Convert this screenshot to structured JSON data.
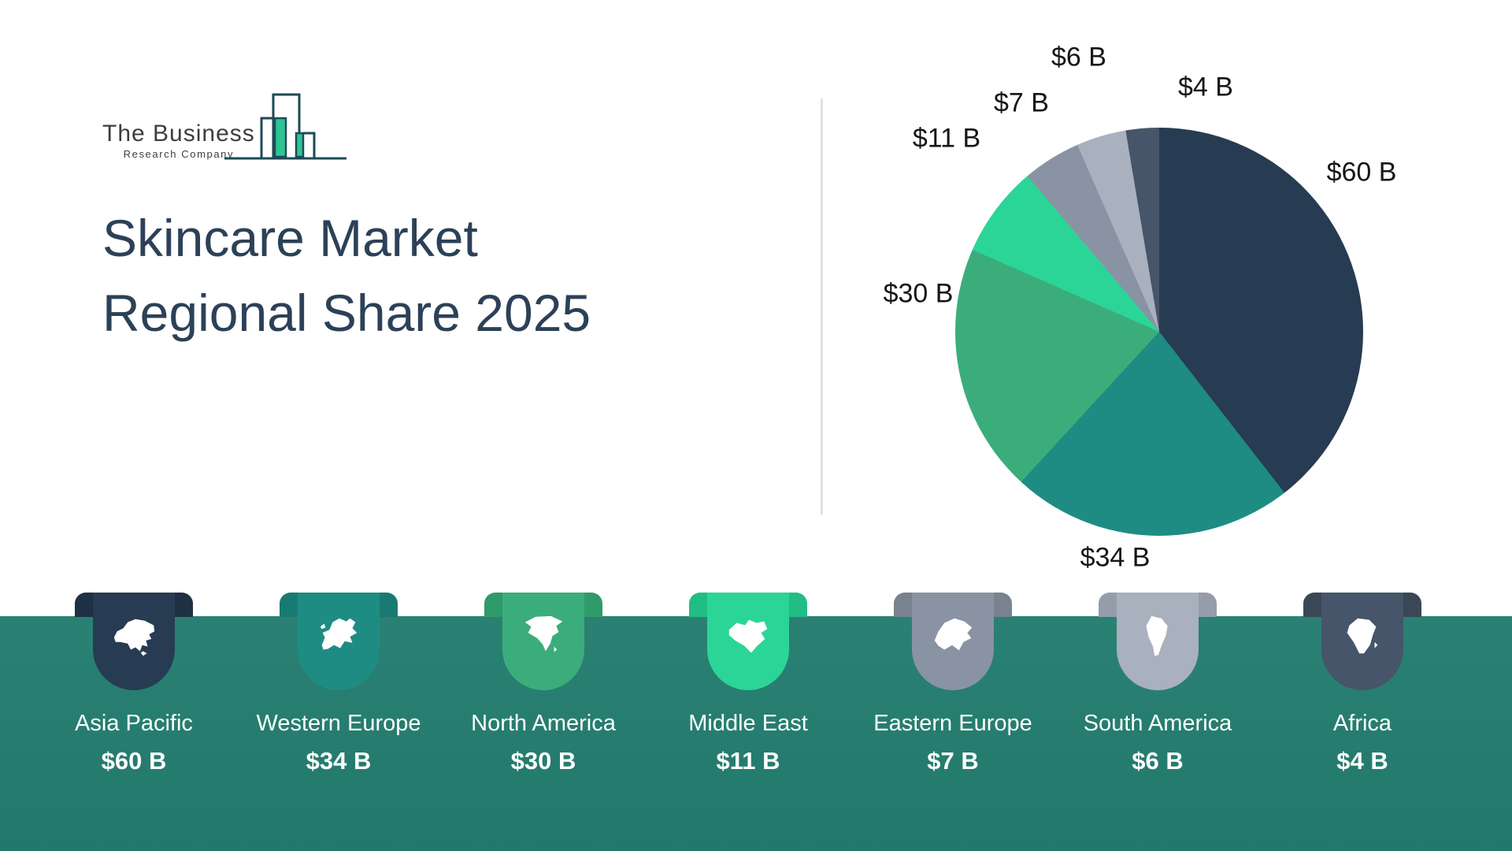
{
  "logo": {
    "line1": "The Business",
    "line2": "Research Company"
  },
  "title": {
    "line1": "Skincare Market",
    "line2": "Regional Share 2025"
  },
  "chart_data": {
    "type": "pie",
    "title": "Skincare Market Regional Share 2025",
    "unit": "USD billions",
    "categories": [
      "Asia Pacific",
      "Western Europe",
      "North America",
      "Middle East",
      "Eastern Europe",
      "South America",
      "Africa"
    ],
    "values": [
      60,
      34,
      30,
      11,
      7,
      6,
      4
    ],
    "labels": [
      "$60 B",
      "$34 B",
      "$30 B",
      "$11 B",
      "$7 B",
      "$6 B",
      "$4 B"
    ],
    "colors": [
      "#273c52",
      "#1f8c83",
      "#3bad7b",
      "#2bd598",
      "#8a93a3",
      "#a9b0be",
      "#465569"
    ],
    "start_angle_deg": 0,
    "direction": "clockwise",
    "legend_position": "bottom"
  },
  "regions": [
    {
      "name": "Asia Pacific",
      "value": "$60 B",
      "color": "#273c52",
      "ear_color": "#1e3044",
      "icon": "asia",
      "icon_name": "asia-map-icon"
    },
    {
      "name": "Western Europe",
      "value": "$34 B",
      "color": "#1f8c83",
      "ear_color": "#187a71",
      "icon": "europe",
      "icon_name": "western-europe-map-icon"
    },
    {
      "name": "North America",
      "value": "$30 B",
      "color": "#3bad7b",
      "ear_color": "#2f9a6a",
      "icon": "north-america",
      "icon_name": "north-america-map-icon"
    },
    {
      "name": "Middle East",
      "value": "$11 B",
      "color": "#2bd598",
      "ear_color": "#22bd85",
      "icon": "middle-east",
      "icon_name": "middle-east-map-icon"
    },
    {
      "name": "Eastern Europe",
      "value": "$7 B",
      "color": "#8a93a3",
      "ear_color": "#79828f",
      "icon": "eastern-europe",
      "icon_name": "eastern-europe-map-icon"
    },
    {
      "name": "South America",
      "value": "$6 B",
      "color": "#a9b0be",
      "ear_color": "#959caa",
      "icon": "south-america",
      "icon_name": "south-america-map-icon"
    },
    {
      "name": "Africa",
      "value": "$4 B",
      "color": "#465569",
      "ear_color": "#3a4757",
      "icon": "africa",
      "icon_name": "africa-map-icon"
    }
  ]
}
